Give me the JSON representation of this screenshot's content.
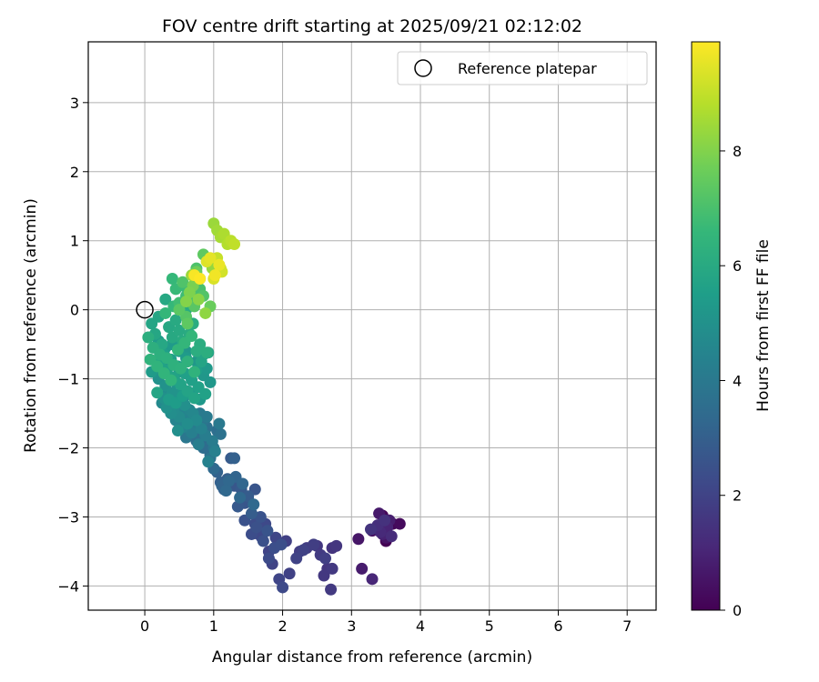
{
  "chart_data": {
    "type": "scatter",
    "title": "FOV centre drift starting at 2025/09/21 02:12:02",
    "xlabel": "Angular distance from reference (arcmin)",
    "ylabel": "Rotation from reference (arcmin)",
    "xlim": [
      -0.82,
      7.42
    ],
    "ylim": [
      -4.35,
      3.88
    ],
    "xticks": [
      0,
      1,
      2,
      3,
      4,
      5,
      6,
      7
    ],
    "yticks": [
      -4,
      -3,
      -2,
      -1,
      0,
      1,
      2,
      3
    ],
    "grid": true,
    "legend": {
      "position": "top-right",
      "entries": [
        "Reference platepar"
      ]
    },
    "reference_point": {
      "x": 0,
      "y": 0,
      "label": "Reference platepar"
    },
    "colorbar": {
      "label": "Hours from first FF file",
      "colormap": "viridis",
      "range": [
        0,
        9.9
      ],
      "ticks": [
        0,
        2,
        4,
        6,
        8
      ]
    },
    "colormap_stops": [
      "#440154",
      "#482878",
      "#3e4989",
      "#31688e",
      "#26828e",
      "#1f9e89",
      "#35b779",
      "#6ece58",
      "#b5de2b",
      "#fde725"
    ],
    "series": [
      {
        "name": "segment-1",
        "t_start": 0.0,
        "t_end": 1.5,
        "x": [
          3.5,
          3.6,
          3.45,
          3.7,
          3.3,
          3.35,
          3.5,
          3.1,
          3.4,
          3.15,
          3.55,
          3.45,
          3.52,
          3.3,
          3.42,
          3.58,
          3.38,
          3.48,
          3.28
        ],
        "y": [
          -3.35,
          -3.1,
          -2.98,
          -3.1,
          -3.2,
          -3.18,
          -3.3,
          -3.32,
          -2.95,
          -3.75,
          -3.05,
          -3.25,
          -3.15,
          -3.9,
          -3.22,
          -3.28,
          -3.12,
          -3.05,
          -3.18
        ]
      },
      {
        "name": "segment-2",
        "t_start": 1.5,
        "t_end": 2.0,
        "x": [
          2.72,
          2.65,
          2.78,
          2.5,
          2.6,
          2.72,
          2.7,
          2.55,
          2.35,
          2.25,
          2.45,
          2.62,
          2.05,
          2.1,
          2.3,
          2.2
        ],
        "y": [
          -3.45,
          -3.75,
          -3.42,
          -3.42,
          -3.85,
          -3.75,
          -4.05,
          -3.55,
          -3.45,
          -3.5,
          -3.4,
          -3.6,
          -3.35,
          -3.82,
          -3.48,
          -3.6
        ]
      },
      {
        "name": "segment-3",
        "t_start": 2.0,
        "t_end": 2.6,
        "x": [
          1.8,
          1.85,
          1.95,
          1.9,
          1.7,
          1.65,
          1.75,
          2.0,
          1.8,
          1.6,
          1.55,
          1.88,
          1.98,
          1.72,
          1.62,
          1.5,
          1.45,
          1.68,
          1.78
        ],
        "y": [
          -3.5,
          -3.68,
          -3.9,
          -3.3,
          -3.3,
          -3.25,
          -3.1,
          -4.02,
          -3.6,
          -3.1,
          -3.25,
          -3.45,
          -3.4,
          -3.35,
          -3.15,
          -2.75,
          -3.05,
          -3.0,
          -3.2
        ]
      },
      {
        "name": "segment-4",
        "t_start": 2.6,
        "t_end": 3.4,
        "x": [
          1.5,
          1.6,
          1.45,
          1.3,
          1.35,
          1.4,
          1.25,
          1.5,
          1.55,
          1.2,
          1.15,
          1.1,
          1.3,
          1.05,
          1.0,
          1.12,
          1.32,
          1.42,
          1.22,
          1.18,
          1.38,
          1.58
        ],
        "y": [
          -2.75,
          -2.6,
          -2.8,
          -2.55,
          -2.85,
          -2.6,
          -2.15,
          -2.7,
          -2.95,
          -2.45,
          -2.6,
          -2.5,
          -2.15,
          -2.35,
          -2.3,
          -2.55,
          -2.42,
          -2.52,
          -2.48,
          -2.62,
          -2.72,
          -2.82
        ]
      },
      {
        "name": "segment-5",
        "t_start": 3.4,
        "t_end": 4.4,
        "x": [
          1.0,
          0.95,
          0.9,
          0.85,
          1.05,
          0.8,
          0.75,
          0.9,
          1.1,
          0.7,
          0.95,
          0.85,
          1.0,
          0.6,
          0.65,
          0.8,
          1.08,
          0.9,
          0.72,
          0.98,
          0.88,
          0.78,
          0.68,
          1.02,
          0.92,
          0.82
        ],
        "y": [
          -2.3,
          -2.1,
          -1.95,
          -2.0,
          -1.75,
          -1.85,
          -1.9,
          -1.7,
          -1.8,
          -1.75,
          -2.15,
          -1.6,
          -2.0,
          -1.85,
          -1.65,
          -1.5,
          -1.65,
          -1.55,
          -1.7,
          -1.9,
          -1.82,
          -1.95,
          -1.78,
          -2.05,
          -2.2,
          -1.72
        ]
      },
      {
        "name": "segment-6",
        "t_start": 4.4,
        "t_end": 5.0,
        "x": [
          0.6,
          0.55,
          0.45,
          0.5,
          0.4,
          0.65,
          0.7,
          0.35,
          0.3,
          0.25,
          0.55,
          0.75,
          0.5,
          0.42,
          0.62,
          0.52,
          0.38,
          0.48,
          0.58,
          0.32,
          0.28
        ],
        "y": [
          -1.5,
          -1.7,
          -1.6,
          -1.4,
          -1.35,
          -1.45,
          -1.5,
          -1.2,
          -1.25,
          -1.35,
          -1.3,
          -1.6,
          -1.55,
          -1.45,
          -1.65,
          -1.25,
          -1.5,
          -1.75,
          -1.38,
          -1.42,
          -1.28
        ]
      },
      {
        "name": "segment-7",
        "t_start": 5.0,
        "t_end": 5.8,
        "x": [
          0.2,
          0.15,
          0.3,
          0.4,
          0.35,
          0.25,
          0.5,
          0.45,
          0.55,
          0.65,
          0.6,
          0.75,
          0.85,
          0.95,
          0.7,
          0.8,
          0.9,
          0.3,
          0.4,
          0.5,
          0.6,
          0.2,
          0.1,
          0.35,
          0.45,
          0.55,
          0.65,
          0.75,
          0.85,
          0.28,
          0.38,
          0.48,
          0.58,
          0.68,
          0.78,
          0.88,
          0.22,
          0.32,
          0.42,
          0.52,
          0.62,
          0.72,
          0.82,
          0.92,
          0.18
        ],
        "y": [
          -1.0,
          -0.9,
          -1.1,
          -1.2,
          -0.8,
          -0.7,
          -0.9,
          -1.05,
          -1.15,
          -1.2,
          -0.6,
          -0.75,
          -0.95,
          -1.05,
          -1.25,
          -1.3,
          -0.85,
          -0.55,
          -0.5,
          -0.6,
          -0.7,
          -0.45,
          -0.9,
          -1.3,
          -1.35,
          -1.25,
          -0.95,
          -0.88,
          -0.65,
          -0.65,
          -0.72,
          -0.82,
          -0.92,
          -1.02,
          -1.12,
          -1.22,
          -0.78,
          -0.88,
          -0.98,
          -1.08,
          -1.18,
          -1.28,
          -0.75,
          -0.62,
          -1.2
        ]
      },
      {
        "name": "segment-8",
        "t_start": 5.8,
        "t_end": 6.6,
        "x": [
          0.1,
          0.2,
          0.15,
          0.25,
          0.35,
          0.3,
          0.4,
          0.5,
          0.45,
          0.55,
          0.65,
          0.6,
          0.7,
          0.8,
          0.75,
          0.9,
          0.05,
          0.12,
          0.22,
          0.32,
          0.42,
          0.52,
          0.62,
          0.72,
          0.08,
          0.18,
          0.28,
          0.38,
          0.48,
          0.58,
          0.68,
          0.3,
          0.42
        ],
        "y": [
          -0.2,
          -0.1,
          -0.35,
          -0.5,
          -0.25,
          0.15,
          -0.4,
          -0.3,
          -0.15,
          -0.45,
          -0.35,
          0.0,
          -0.2,
          -0.5,
          -0.6,
          -0.62,
          -0.4,
          -0.55,
          -0.65,
          -0.7,
          -0.8,
          -0.85,
          -0.75,
          -0.9,
          -0.72,
          -0.82,
          -0.92,
          -1.02,
          -0.58,
          -0.48,
          -0.38,
          -0.05,
          0.05
        ]
      },
      {
        "name": "segment-9",
        "t_start": 6.6,
        "t_end": 7.4,
        "x": [
          0.4,
          0.45,
          0.55,
          0.6,
          0.5,
          0.65,
          0.7,
          0.8,
          0.75,
          0.55,
          0.85,
          0.6,
          0.72,
          0.5,
          0.62
        ],
        "y": [
          0.45,
          0.3,
          0.35,
          0.2,
          0.1,
          0.15,
          0.25,
          0.3,
          0.6,
          0.4,
          0.2,
          -0.1,
          0.05,
          0.0,
          -0.2
        ]
      },
      {
        "name": "segment-10",
        "t_start": 7.4,
        "t_end": 8.4,
        "x": [
          0.85,
          0.9,
          0.95,
          0.75,
          0.8,
          0.7,
          0.65,
          0.6,
          0.78,
          0.88,
          0.98,
          0.68
        ],
        "y": [
          0.8,
          0.7,
          0.05,
          0.55,
          0.45,
          0.35,
          0.25,
          0.12,
          0.15,
          -0.05,
          0.6,
          0.5
        ]
      },
      {
        "name": "segment-11",
        "t_start": 8.4,
        "t_end": 9.9,
        "x": [
          1.0,
          1.05,
          1.1,
          1.15,
          1.2,
          1.25,
          1.3,
          1.05,
          1.1,
          1.12,
          1.0,
          0.9,
          0.95,
          1.08,
          1.02,
          0.72,
          0.8
        ],
        "y": [
          1.25,
          1.15,
          1.05,
          1.1,
          0.95,
          1.0,
          0.95,
          0.75,
          0.6,
          0.55,
          0.45,
          0.7,
          0.75,
          0.65,
          0.5,
          0.5,
          0.45
        ]
      }
    ]
  }
}
